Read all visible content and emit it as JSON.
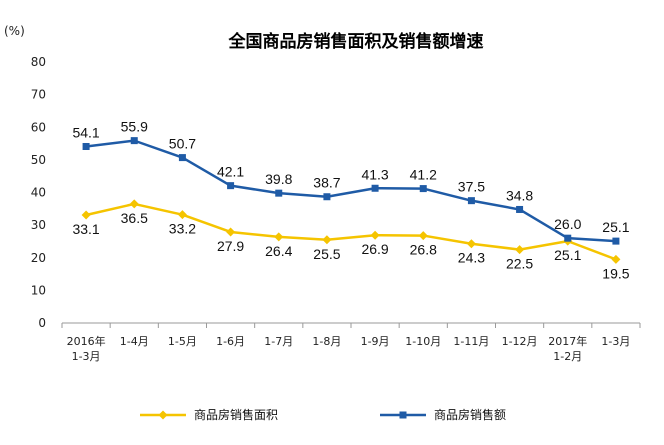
{
  "chart_data": {
    "type": "line",
    "title": "全国商品房销售面积及销售额增速",
    "ylabel": "(%)",
    "ylim": [
      0,
      80
    ],
    "yticks": [
      0,
      10,
      20,
      30,
      40,
      50,
      60,
      70,
      80
    ],
    "grid": false,
    "legend_position": "bottom",
    "categories": [
      [
        "2016年",
        "1-3月"
      ],
      [
        "1-4月"
      ],
      [
        "1-5月"
      ],
      [
        "1-6月"
      ],
      [
        "1-7月"
      ],
      [
        "1-8月"
      ],
      [
        "1-9月"
      ],
      [
        "1-10月"
      ],
      [
        "1-11月"
      ],
      [
        "1-12月"
      ],
      [
        "2017年",
        "1-2月"
      ],
      [
        "1-3月"
      ]
    ],
    "series": [
      {
        "name": "商品房销售面积",
        "color": "#F5C400",
        "marker": "diamond",
        "values": [
          33.1,
          36.5,
          33.2,
          27.9,
          26.4,
          25.5,
          26.9,
          26.8,
          24.3,
          22.5,
          25.1,
          19.5
        ]
      },
      {
        "name": "商品房销售额",
        "color": "#1F5BA6",
        "marker": "square",
        "values": [
          54.1,
          55.9,
          50.7,
          42.1,
          39.8,
          38.7,
          41.3,
          41.2,
          37.5,
          34.8,
          26.0,
          25.1
        ]
      }
    ]
  }
}
